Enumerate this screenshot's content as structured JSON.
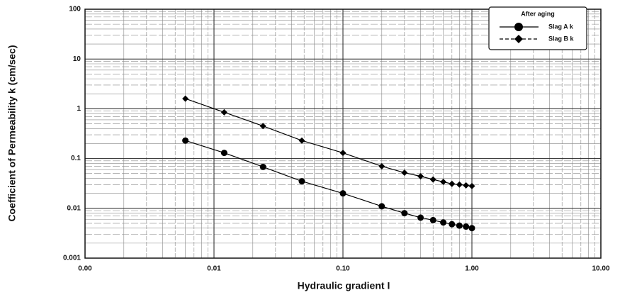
{
  "chart_data": {
    "type": "line",
    "x_label": "Hydraulic gradient I",
    "y_label": "Coefficient of Permeability k (cm/sec)",
    "x": [
      0.006,
      0.012,
      0.024,
      0.048,
      0.1,
      0.2,
      0.3,
      0.4,
      0.5,
      0.6,
      0.7,
      0.8,
      0.9,
      1.0
    ],
    "series": [
      {
        "name": "Slag A k",
        "color": "#000000",
        "marker": "circle",
        "values": [
          0.23,
          0.13,
          0.068,
          0.035,
          0.02,
          0.011,
          0.008,
          0.0065,
          0.0058,
          0.0052,
          0.0048,
          0.0045,
          0.0043,
          0.004
        ]
      },
      {
        "name": "Slag B k",
        "color": "#000000",
        "marker": "diamond",
        "values": [
          1.6,
          0.85,
          0.45,
          0.23,
          0.13,
          0.07,
          0.052,
          0.044,
          0.038,
          0.034,
          0.031,
          0.03,
          0.029,
          0.028
        ]
      }
    ],
    "legend_title": "After aging",
    "legend": "upper right",
    "xscale": "log",
    "yscale": "log",
    "xlim": [
      0.001,
      10
    ],
    "ylim": [
      0.001,
      100
    ],
    "xticks": [
      {
        "value": 0.001,
        "label": "0.00"
      },
      {
        "value": 0.01,
        "label": "0.01"
      },
      {
        "value": 0.1,
        "label": "0.10"
      },
      {
        "value": 1,
        "label": "1.00"
      },
      {
        "value": 10,
        "label": "10.00"
      }
    ],
    "yticks": [
      0.001,
      0.01,
      0.1,
      1,
      10,
      100
    ],
    "grid": true
  }
}
